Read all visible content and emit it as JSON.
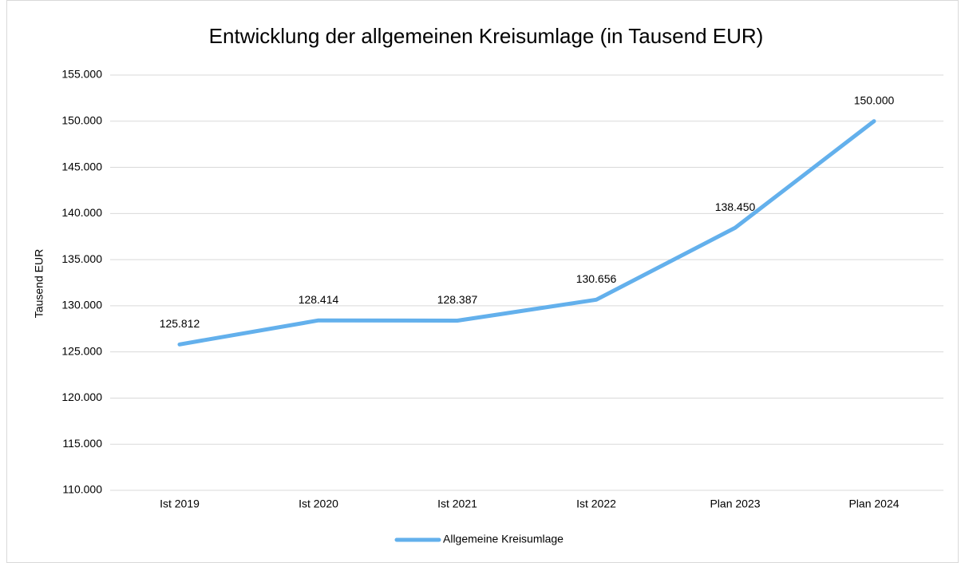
{
  "chart_data": {
    "type": "line",
    "title": "Entwicklung der allgemeinen Kreisumlage (in Tausend EUR)",
    "y_label": "Tausend EUR",
    "categories": [
      "Ist 2019",
      "Ist 2020",
      "Ist 2021",
      "Ist 2022",
      "Plan 2023",
      "Plan 2024"
    ],
    "series": [
      {
        "name": "Allgemeine Kreisumlage",
        "color": "#63b0ec",
        "values": [
          125812,
          128414,
          128387,
          130656,
          138450,
          150000
        ],
        "value_labels": [
          "125.812",
          "128.414",
          "128.387",
          "130.656",
          "138.450",
          "150.000"
        ]
      }
    ],
    "ylim": [
      110000,
      155000
    ],
    "yticks": [
      {
        "value": 110000,
        "label": "110.000"
      },
      {
        "value": 115000,
        "label": "115.000"
      },
      {
        "value": 120000,
        "label": "120.000"
      },
      {
        "value": 125000,
        "label": "125.000"
      },
      {
        "value": 130000,
        "label": "130.000"
      },
      {
        "value": 135000,
        "label": "135.000"
      },
      {
        "value": 140000,
        "label": "140.000"
      },
      {
        "value": 145000,
        "label": "145.000"
      },
      {
        "value": 150000,
        "label": "150.000"
      },
      {
        "value": 155000,
        "label": "155.000"
      }
    ],
    "grid": true,
    "legend": "bottom"
  }
}
